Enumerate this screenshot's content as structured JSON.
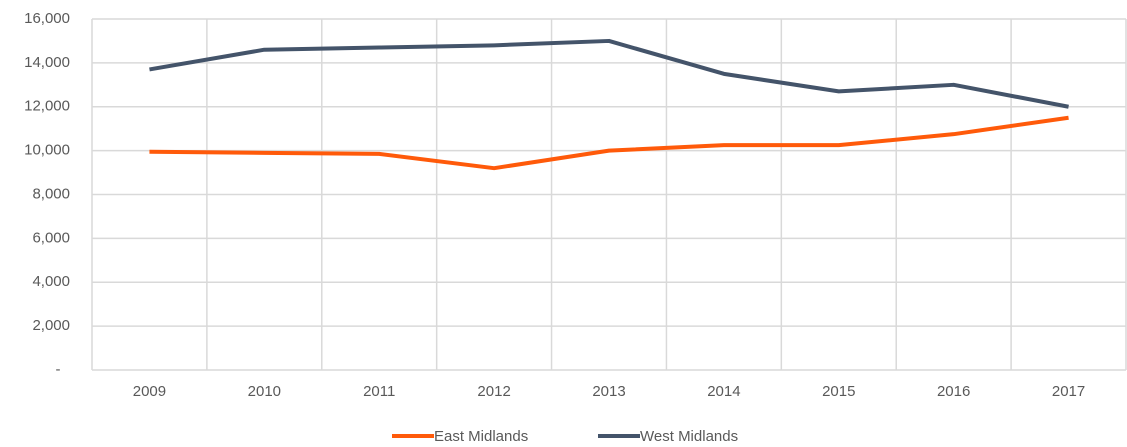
{
  "chart_data": {
    "type": "line",
    "categories": [
      "2009",
      "2010",
      "2011",
      "2012",
      "2013",
      "2014",
      "2015",
      "2016",
      "2017"
    ],
    "series": [
      {
        "name": "East Midlands",
        "color": "#ff5a0a",
        "values": [
          9950,
          9900,
          9850,
          9200,
          10000,
          10250,
          10250,
          10750,
          11500
        ]
      },
      {
        "name": "West Midlands",
        "color": "#44546a",
        "values": [
          13700,
          14600,
          14700,
          14800,
          15000,
          13500,
          12700,
          13000,
          12000
        ]
      }
    ],
    "ylim": [
      0,
      16000
    ],
    "yticks": [
      {
        "value": 0,
        "label": "-"
      },
      {
        "value": 2000,
        "label": "2,000"
      },
      {
        "value": 4000,
        "label": "4,000"
      },
      {
        "value": 6000,
        "label": "6,000"
      },
      {
        "value": 8000,
        "label": "8,000"
      },
      {
        "value": 10000,
        "label": "10,000"
      },
      {
        "value": 12000,
        "label": "12,000"
      },
      {
        "value": 14000,
        "label": "14,000"
      },
      {
        "value": 16000,
        "label": "16,000"
      }
    ],
    "grid": true,
    "legend": "bottom"
  }
}
